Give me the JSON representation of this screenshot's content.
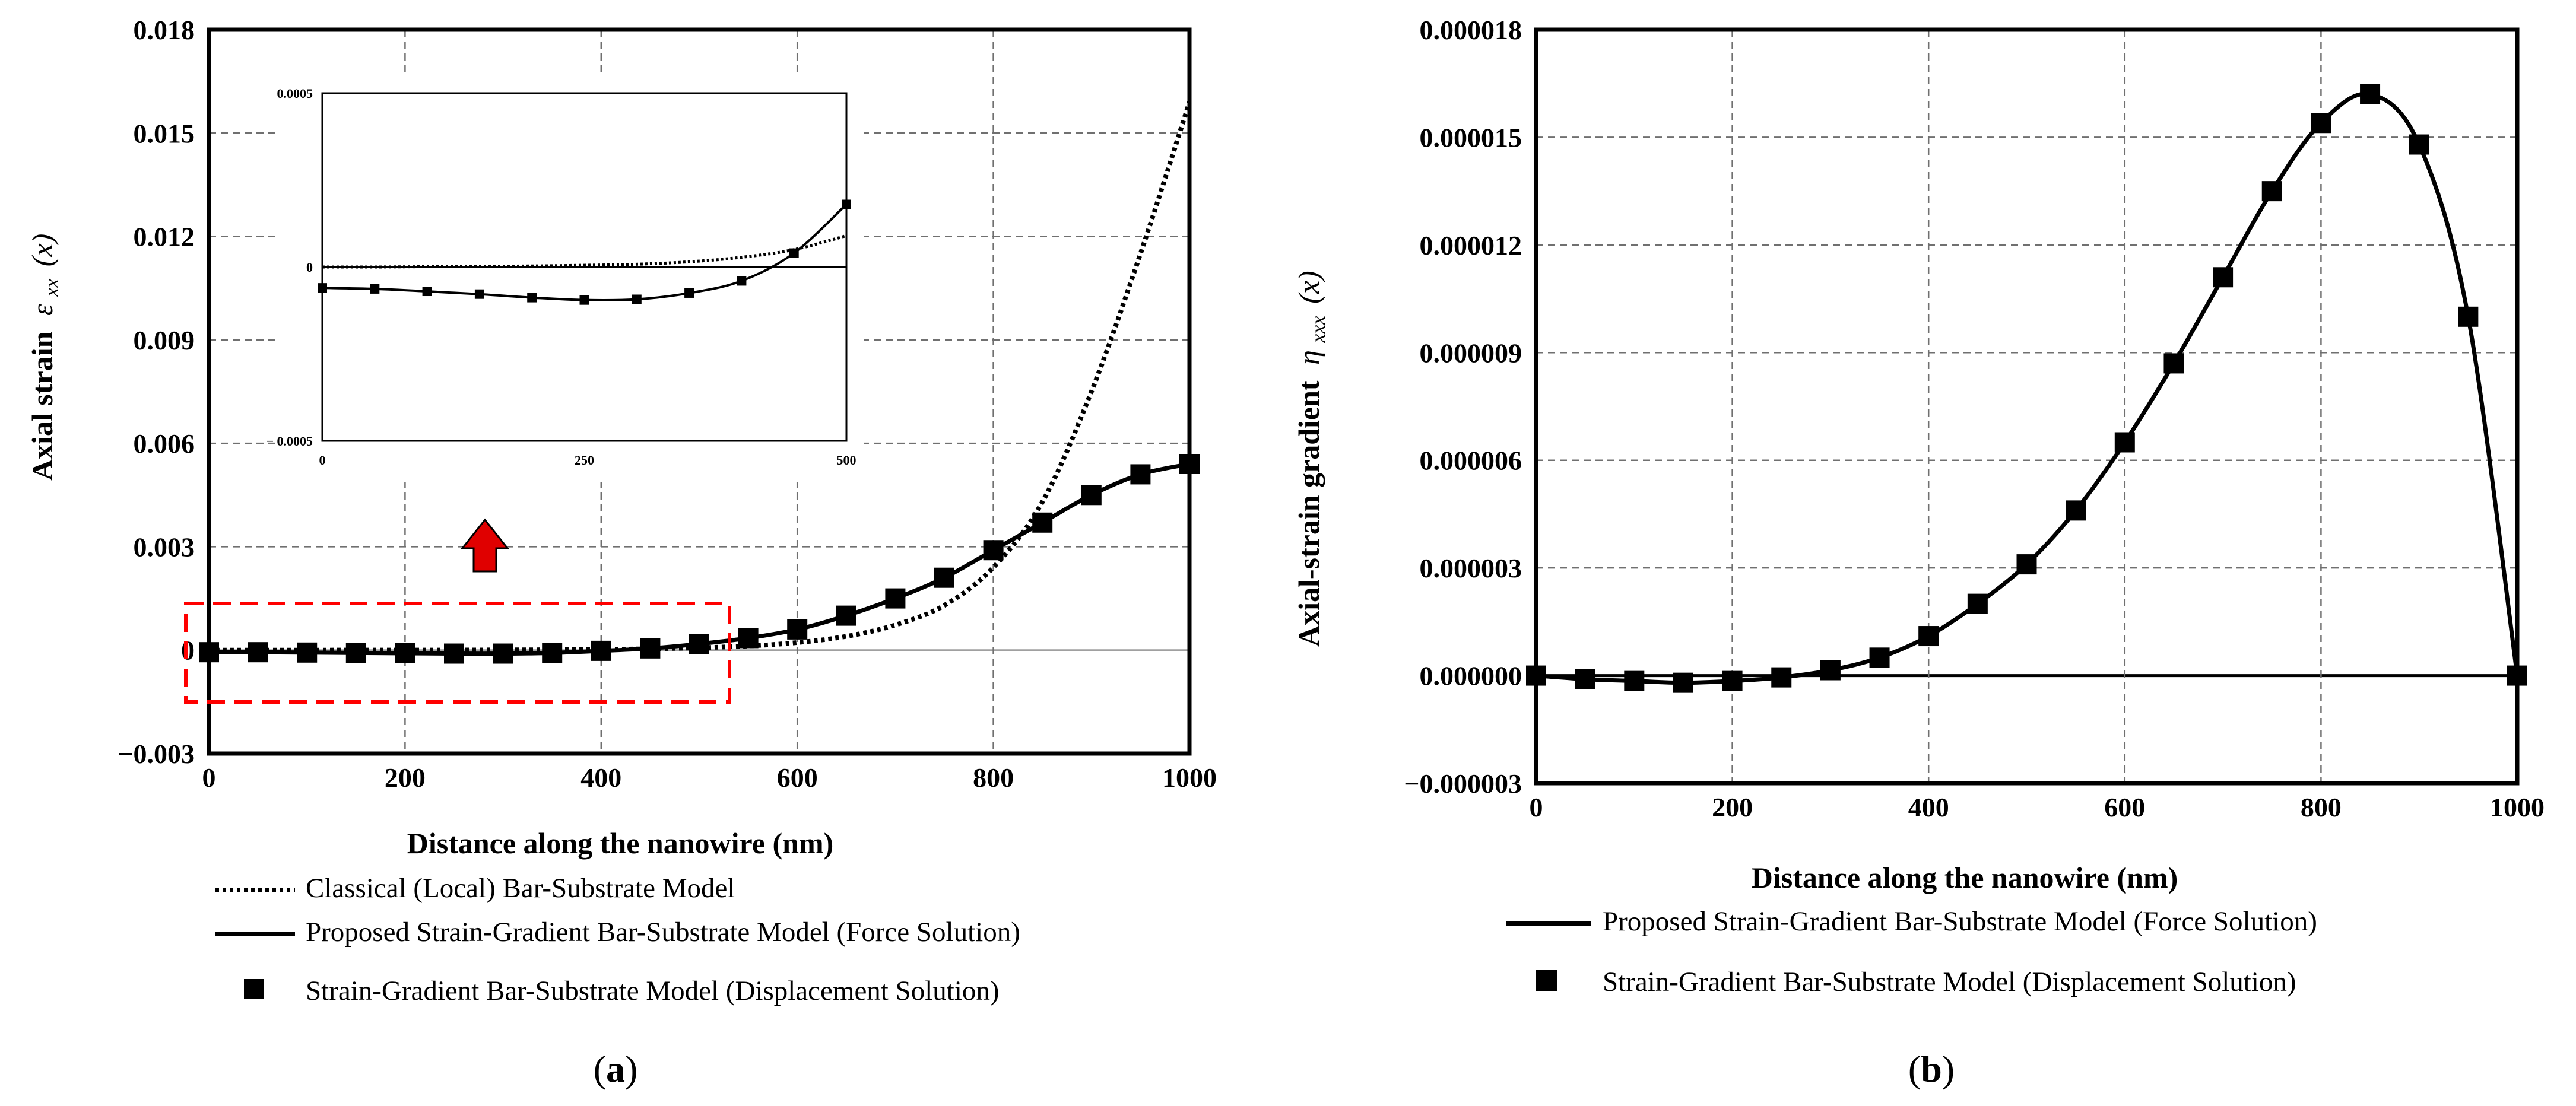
{
  "chart_data": [
    {
      "type": "line",
      "panel_label": "a",
      "xlabel": "Distance along the nanowire (nm)",
      "ylabel_text": "Axial strain",
      "ylabel_symbol": "ε",
      "ylabel_subscript": "xx",
      "ylabel_arg": "(x)",
      "xlim": [
        0,
        1000
      ],
      "ylim": [
        -0.003,
        0.018
      ],
      "x_ticks": [
        0,
        200,
        400,
        600,
        800,
        1000
      ],
      "x_tick_labels": [
        "0",
        "200",
        "400",
        "600",
        "800",
        "1000"
      ],
      "y_ticks": [
        -0.003,
        0,
        0.003,
        0.006,
        0.009,
        0.012,
        0.015,
        0.018
      ],
      "y_tick_labels": [
        "−0.003",
        "0",
        "0.003",
        "0.006",
        "0.009",
        "0.012",
        "0.015",
        "0.018"
      ],
      "series": [
        {
          "name": "Classical (Local) Bar-Substrate Model",
          "style": "dotted",
          "x": [
            0,
            50,
            100,
            150,
            200,
            250,
            300,
            350,
            400,
            450,
            500,
            550,
            600,
            650,
            700,
            750,
            800,
            850,
            900,
            950,
            1000
          ],
          "values": [
            0,
            0,
            0,
            1e-06,
            2e-06,
            3e-06,
            6e-06,
            1.1e-05,
            2e-05,
            4e-05,
            7e-05,
            0.00012,
            0.00022,
            0.0004,
            0.00073,
            0.0013,
            0.0024,
            0.0043,
            0.0075,
            0.0115,
            0.0159
          ]
        },
        {
          "name": "Proposed Strain-Gradient Bar-Substrate Model (Force Solution)",
          "style": "solid",
          "x": [
            0,
            50,
            100,
            150,
            200,
            250,
            300,
            350,
            400,
            450,
            500,
            550,
            600,
            650,
            700,
            750,
            800,
            850,
            900,
            950,
            1000
          ],
          "values": [
            -6e-05,
            -6e-05,
            -7e-05,
            -8e-05,
            -9e-05,
            -0.0001,
            -0.0001,
            -8e-05,
            -2e-05,
            5e-05,
            0.00018,
            0.00035,
            0.0006,
            0.001,
            0.0015,
            0.0021,
            0.0029,
            0.0037,
            0.0045,
            0.0051,
            0.0054
          ]
        },
        {
          "name": "Strain-Gradient Bar-Substrate Model (Displacement Solution)",
          "style": "square-markers",
          "x": [
            0,
            50,
            100,
            150,
            200,
            250,
            300,
            350,
            400,
            450,
            500,
            550,
            600,
            650,
            700,
            750,
            800,
            850,
            900,
            950,
            1000
          ],
          "values": [
            -6e-05,
            -6e-05,
            -7e-05,
            -8e-05,
            -9e-05,
            -0.0001,
            -0.0001,
            -8e-05,
            -2e-05,
            5e-05,
            0.00018,
            0.00035,
            0.0006,
            0.001,
            0.0015,
            0.0021,
            0.0029,
            0.0037,
            0.0045,
            0.0051,
            0.0054
          ]
        }
      ],
      "inset": {
        "xlim": [
          0,
          500
        ],
        "ylim": [
          -0.0005,
          0.0005
        ],
        "x_tick_labels": [
          "0",
          "250",
          "500"
        ],
        "y_tick_labels": [
          "0.0005",
          "0",
          "− 0.0005"
        ],
        "classical": {
          "x": [
            0,
            50,
            100,
            150,
            200,
            250,
            300,
            350,
            400,
            450,
            500
          ],
          "values": [
            0,
            0,
            1e-06,
            2e-06,
            3e-06,
            5e-06,
            8e-06,
            1.5e-05,
            2.8e-05,
            5e-05,
            9e-05
          ]
        },
        "gradient": {
          "x": [
            0,
            50,
            100,
            150,
            200,
            250,
            300,
            350,
            400,
            450,
            500
          ],
          "values": [
            -6e-05,
            -6.3e-05,
            -7e-05,
            -7.8e-05,
            -8.8e-05,
            -9.5e-05,
            -9.3e-05,
            -7.5e-05,
            -4e-05,
            4e-05,
            0.00018
          ]
        }
      },
      "legend": [
        "Classical (Local) Bar-Substrate Model",
        "Proposed Strain-Gradient Bar-Substrate Model (Force Solution)",
        "Strain-Gradient Bar-Substrate Model (Displacement Solution)"
      ],
      "colors": {
        "highlight_box": "#ff0000",
        "arrow": "#e00000",
        "grid": "#707070"
      }
    },
    {
      "type": "line",
      "panel_label": "b",
      "xlabel": "Distance along the nanowire (nm)",
      "ylabel_text": "Axial-strain gradient",
      "ylabel_symbol": "η",
      "ylabel_subscript": "xxx",
      "ylabel_arg": "(x)",
      "xlim": [
        0,
        1000
      ],
      "ylim": [
        -3e-06,
        1.8e-05
      ],
      "x_ticks": [
        0,
        200,
        400,
        600,
        800,
        1000
      ],
      "x_tick_labels": [
        "0",
        "200",
        "400",
        "600",
        "800",
        "1000"
      ],
      "y_ticks": [
        -3e-06,
        0,
        3e-06,
        6e-06,
        9e-06,
        1.2e-05,
        1.5e-05,
        1.8e-05
      ],
      "y_tick_labels": [
        "−0.000003",
        "0.000000",
        "0.000003",
        "0.000006",
        "0.000009",
        "0.000012",
        "0.000015",
        "0.000018"
      ],
      "series": [
        {
          "name": "Proposed Strain-Gradient Bar-Substrate Model (Force Solution)",
          "style": "solid",
          "x": [
            0,
            50,
            100,
            150,
            200,
            250,
            300,
            350,
            400,
            450,
            500,
            550,
            600,
            650,
            700,
            750,
            800,
            850,
            900,
            950,
            1000
          ],
          "values": [
            0,
            -1e-07,
            -1.5e-07,
            -2e-07,
            -1.5e-07,
            -5e-08,
            1.5e-07,
            5e-07,
            1.1e-06,
            2e-06,
            3.1e-06,
            4.6e-06,
            6.5e-06,
            8.7e-06,
            1.11e-05,
            1.35e-05,
            1.54e-05,
            1.62e-05,
            1.48e-05,
            1e-05,
            0
          ]
        },
        {
          "name": "Strain-Gradient Bar-Substrate Model (Displacement Solution)",
          "style": "square-markers",
          "x": [
            0,
            50,
            100,
            150,
            200,
            250,
            300,
            350,
            400,
            450,
            500,
            550,
            600,
            650,
            700,
            750,
            800,
            850,
            900,
            950,
            1000
          ],
          "values": [
            0,
            -1e-07,
            -1.5e-07,
            -2e-07,
            -1.5e-07,
            -5e-08,
            1.5e-07,
            5e-07,
            1.1e-06,
            2e-06,
            3.1e-06,
            4.6e-06,
            6.5e-06,
            8.7e-06,
            1.11e-05,
            1.35e-05,
            1.54e-05,
            1.62e-05,
            1.48e-05,
            1e-05,
            0
          ]
        }
      ],
      "legend": [
        "Proposed Strain-Gradient Bar-Substrate Model (Force Solution)",
        "Strain-Gradient Bar-Substrate Model (Displacement Solution)"
      ],
      "colors": {
        "grid": "#707070"
      }
    }
  ]
}
